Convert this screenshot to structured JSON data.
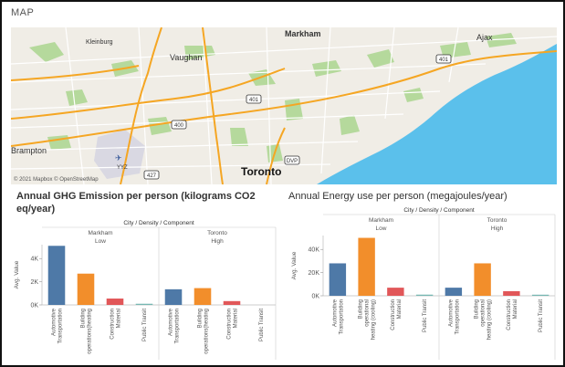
{
  "map": {
    "section_label": "MAP",
    "attribution": "© 2021 Mapbox © OpenStreetMap",
    "places": [
      "Markham",
      "Ajax",
      "Kleinburg",
      "Vaughan",
      "Brampton",
      "Toronto",
      "YYZ"
    ],
    "highway_shields": [
      "400",
      "401",
      "401",
      "427",
      "DVP"
    ],
    "colors": {
      "land": "#f0ede6",
      "water": "#5bc0eb",
      "parks": "#b5d99c",
      "roads": "#f5a623"
    }
  },
  "ghg_chart": {
    "title": "Annual GHG Emission per person (kilograms CO2 eq/year)"
  },
  "energy_chart": {
    "title": "Annual Energy use per person (megajoules/year)"
  },
  "chart_data": [
    {
      "type": "bar",
      "title": "Annual GHG Emission per person (kilograms CO2 eq/year)",
      "header": "City / Density / Component",
      "ylabel": "Avg. Value",
      "ylim": [
        0,
        5200
      ],
      "yticks": [
        0,
        2000,
        4000
      ],
      "ytick_labels": [
        "0K",
        "2K",
        "4K"
      ],
      "groups": [
        {
          "city": "Markham",
          "density": "Low"
        },
        {
          "city": "Toronto",
          "density": "High"
        }
      ],
      "categories": [
        "Automotive Transportation",
        "Building operations(heating",
        "Construction Material",
        "Public Transit"
      ],
      "colors": [
        "#4e79a7",
        "#f28e2b",
        "#e15759",
        "#76b7b2"
      ],
      "series": [
        {
          "group": "Markham",
          "values": [
            5100,
            2700,
            550,
            100
          ]
        },
        {
          "group": "Toronto",
          "values": [
            1350,
            1450,
            330,
            0
          ]
        }
      ]
    },
    {
      "type": "bar",
      "title": "Annual Energy use per person (megajoules/year)",
      "header": "City / Density / Component",
      "ylabel": "Avg. Value",
      "ylim": [
        0,
        52000
      ],
      "yticks": [
        0,
        20000,
        40000
      ],
      "ytick_labels": [
        "0K",
        "20K",
        "40K"
      ],
      "groups": [
        {
          "city": "Markham",
          "density": "Low"
        },
        {
          "city": "Toronto",
          "density": "High"
        }
      ],
      "categories": [
        "Automotive Transportation",
        "Building operational heating (cooling)",
        "Construction Material",
        "Public Transit"
      ],
      "colors": [
        "#4e79a7",
        "#f28e2b",
        "#e15759",
        "#76b7b2"
      ],
      "series": [
        {
          "group": "Markham",
          "values": [
            28000,
            50000,
            7000,
            1000
          ]
        },
        {
          "group": "Toronto",
          "values": [
            7000,
            28000,
            4000,
            300
          ]
        }
      ]
    }
  ]
}
